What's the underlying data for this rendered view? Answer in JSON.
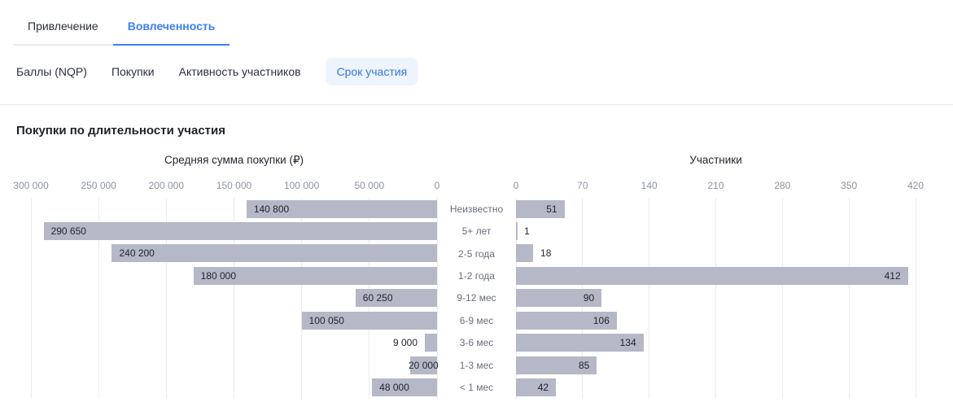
{
  "header": {
    "tabs": [
      {
        "label": "Привлечение",
        "active": false
      },
      {
        "label": "Вовлеченность",
        "active": true
      }
    ],
    "subtabs": [
      {
        "label": "Баллы (NQP)",
        "active": false
      },
      {
        "label": "Покупки",
        "active": false
      },
      {
        "label": "Активность участников",
        "active": false
      },
      {
        "label": "Срок участия",
        "active": true
      }
    ]
  },
  "colors": {
    "accent_blue": "#3d7ff2",
    "subtab_active_bg": "#eef4fd",
    "subtab_active_text": "#3576e5",
    "bar_fill": "#b4b8c7",
    "gridline": "#eaebef",
    "tick_text": "#8d93a3",
    "category_text": "#686e7c",
    "value_text": "#22262f",
    "divider": "#e7e9ed"
  },
  "chart_data": {
    "type": "bar",
    "orientation": "horizontal-bidirectional",
    "title": "Покупки по длительности участия",
    "categories": [
      "Неизвестно",
      "5+ лет",
      "2-5 года",
      "1-2 года",
      "9-12 мес",
      "6-9 мес",
      "3-6 мес",
      "1-3 мес",
      "< 1 мес"
    ],
    "left_axis": {
      "title": "Средняя сумма покупки (₽)",
      "min": 0,
      "max": 300000,
      "ticks": [
        "300 000",
        "250 000",
        "200 000",
        "150 000",
        "100 000",
        "50 000",
        "0"
      ],
      "direction": "right-to-left",
      "values": [
        140800,
        290650,
        240200,
        180000,
        60250,
        100050,
        9000,
        20000,
        48000
      ],
      "value_labels": [
        "140 800",
        "290 650",
        "240 200",
        "180 000",
        "60 250",
        "100 050",
        "9 000",
        "20 000",
        "48 000"
      ],
      "label_placement": [
        "inside",
        "inside",
        "inside",
        "inside",
        "inside",
        "inside",
        "outside",
        "center",
        "inside"
      ]
    },
    "right_axis": {
      "title": "Участники",
      "min": 0,
      "max": 420,
      "ticks": [
        "0",
        "70",
        "140",
        "210",
        "280",
        "350",
        "420"
      ],
      "direction": "left-to-right",
      "values": [
        51,
        1,
        18,
        412,
        90,
        106,
        134,
        85,
        42
      ],
      "value_labels": [
        "51",
        "1",
        "18",
        "412",
        "90",
        "106",
        "134",
        "85",
        "42"
      ],
      "label_placement": [
        "inside",
        "outside",
        "outside",
        "inside",
        "inside",
        "inside",
        "inside",
        "inside",
        "inside"
      ]
    },
    "grid": true,
    "legend": false
  }
}
